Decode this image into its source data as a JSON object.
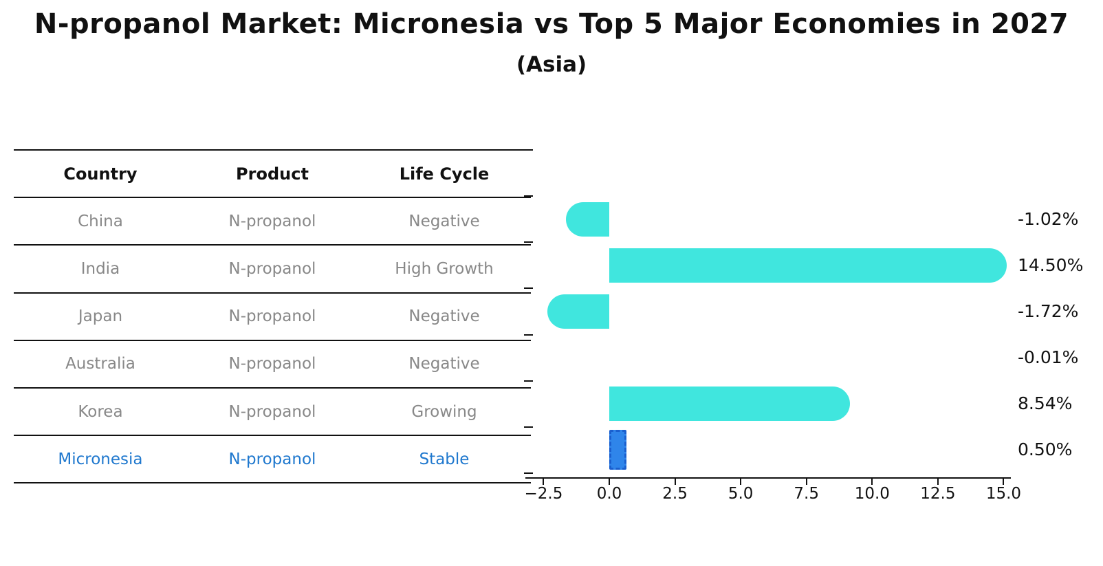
{
  "title": "N-propanol Market: Micronesia vs Top 5 Major Economies in 2027",
  "subtitle": "(Asia)",
  "table": {
    "headers": [
      "Country",
      "Product",
      "Life Cycle"
    ],
    "rows": [
      {
        "country": "China",
        "product": "N-propanol",
        "life_cycle": "Negative"
      },
      {
        "country": "India",
        "product": "N-propanol",
        "life_cycle": "High Growth"
      },
      {
        "country": "Japan",
        "product": "N-propanol",
        "life_cycle": "Negative"
      },
      {
        "country": "Australia",
        "product": "N-propanol",
        "life_cycle": "Negative"
      },
      {
        "country": "Korea",
        "product": "N-propanol",
        "life_cycle": "Growing"
      },
      {
        "country": "Micronesia",
        "product": "N-propanol",
        "life_cycle": "Stable",
        "highlighted": true
      }
    ]
  },
  "chart_data": {
    "type": "bar",
    "orientation": "horizontal",
    "title": "N-propanol Market: Micronesia vs Top 5 Major Economies in 2027",
    "subtitle": "(Asia)",
    "categories": [
      "China",
      "India",
      "Japan",
      "Australia",
      "Korea",
      "Micronesia"
    ],
    "values": [
      -1.02,
      14.5,
      -1.72,
      -0.01,
      8.54,
      0.5
    ],
    "value_labels": [
      "-1.02%",
      "14.50%",
      "-1.72%",
      "-0.01%",
      "8.54%",
      "0.50%"
    ],
    "units": "percent",
    "x_ticks": [
      "−2.5",
      "0.0",
      "2.5",
      "5.0",
      "7.5",
      "10.0",
      "12.5",
      "15.0"
    ],
    "x_tick_values": [
      -2.5,
      0.0,
      2.5,
      5.0,
      7.5,
      10.0,
      12.5,
      15.0
    ],
    "xlim": [
      -3.2,
      15.3
    ],
    "grid": false,
    "legend": false,
    "highlight_category": "Micronesia",
    "bar_color": "#40E6DE",
    "highlight_fill": "#2F85EA",
    "highlight_edge": "#1A5FCE",
    "bar_end_style": "rounded-outer-cap"
  },
  "colors": {
    "bar": "#40E6DE",
    "highlight_fill": "#2F85EA",
    "highlight_edge": "#1A5FCE",
    "highlight_text": "#1F78CE",
    "row_text": "#888888",
    "ink": "#111111",
    "background": "#ffffff"
  }
}
